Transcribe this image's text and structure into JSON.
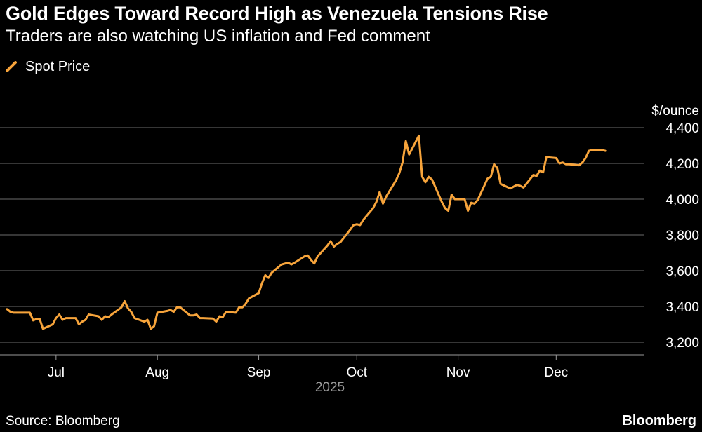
{
  "header": {
    "title": "Gold Edges Toward Record High as Venezuela Tensions Rise",
    "subtitle": "Traders are also watching US inflation and Fed comment"
  },
  "legend": {
    "label": "Spot Price",
    "color": "#F7A43B"
  },
  "footer": {
    "source": "Source: Bloomberg",
    "brand": "Bloomberg"
  },
  "chart_data": {
    "type": "line",
    "unit_label": "$/ounce",
    "year_label": "2025",
    "ylim": [
      3150,
      4420
    ],
    "y_ticks": [
      "4,400",
      "4,200",
      "4,000",
      "3,800",
      "3,600",
      "3,400",
      "3,200"
    ],
    "y_tick_values": [
      4400,
      4200,
      4000,
      3800,
      3600,
      3400,
      3200
    ],
    "x_ticks": [
      "Jul",
      "Aug",
      "Sep",
      "Oct",
      "Nov",
      "Dec"
    ],
    "x_tick_dates": [
      "2025-07-01",
      "2025-08-01",
      "2025-09-01",
      "2025-10-01",
      "2025-11-01",
      "2025-12-01"
    ],
    "xlim": [
      "2025-06-16",
      "2025-12-31"
    ],
    "grid": true,
    "legend_position": "top-left",
    "series": [
      {
        "name": "Spot Price",
        "color": "#F7A43B",
        "points": [
          [
            "2025-06-16",
            3385
          ],
          [
            "2025-06-17",
            3370
          ],
          [
            "2025-06-18",
            3365
          ],
          [
            "2025-06-19",
            3365
          ],
          [
            "2025-06-20",
            3365
          ],
          [
            "2025-06-23",
            3365
          ],
          [
            "2025-06-24",
            3322
          ],
          [
            "2025-06-25",
            3330
          ],
          [
            "2025-06-26",
            3330
          ],
          [
            "2025-06-27",
            3275
          ],
          [
            "2025-06-30",
            3300
          ],
          [
            "2025-07-01",
            3335
          ],
          [
            "2025-07-02",
            3355
          ],
          [
            "2025-07-03",
            3325
          ],
          [
            "2025-07-04",
            3335
          ],
          [
            "2025-07-07",
            3335
          ],
          [
            "2025-07-08",
            3300
          ],
          [
            "2025-07-09",
            3315
          ],
          [
            "2025-07-10",
            3325
          ],
          [
            "2025-07-11",
            3355
          ],
          [
            "2025-07-14",
            3345
          ],
          [
            "2025-07-15",
            3325
          ],
          [
            "2025-07-16",
            3345
          ],
          [
            "2025-07-17",
            3340
          ],
          [
            "2025-07-18",
            3355
          ],
          [
            "2025-07-21",
            3395
          ],
          [
            "2025-07-22",
            3430
          ],
          [
            "2025-07-23",
            3390
          ],
          [
            "2025-07-24",
            3370
          ],
          [
            "2025-07-25",
            3335
          ],
          [
            "2025-07-28",
            3315
          ],
          [
            "2025-07-29",
            3325
          ],
          [
            "2025-07-30",
            3275
          ],
          [
            "2025-07-31",
            3290
          ],
          [
            "2025-08-01",
            3365
          ],
          [
            "2025-08-04",
            3375
          ],
          [
            "2025-08-05",
            3380
          ],
          [
            "2025-08-06",
            3370
          ],
          [
            "2025-08-07",
            3395
          ],
          [
            "2025-08-08",
            3395
          ],
          [
            "2025-08-11",
            3350
          ],
          [
            "2025-08-12",
            3350
          ],
          [
            "2025-08-13",
            3355
          ],
          [
            "2025-08-14",
            3335
          ],
          [
            "2025-08-15",
            3335
          ],
          [
            "2025-08-18",
            3332
          ],
          [
            "2025-08-19",
            3315
          ],
          [
            "2025-08-20",
            3345
          ],
          [
            "2025-08-21",
            3340
          ],
          [
            "2025-08-22",
            3370
          ],
          [
            "2025-08-25",
            3365
          ],
          [
            "2025-08-26",
            3395
          ],
          [
            "2025-08-27",
            3395
          ],
          [
            "2025-08-28",
            3415
          ],
          [
            "2025-08-29",
            3445
          ],
          [
            "2025-09-01",
            3475
          ],
          [
            "2025-09-02",
            3530
          ],
          [
            "2025-09-03",
            3575
          ],
          [
            "2025-09-04",
            3560
          ],
          [
            "2025-09-05",
            3590
          ],
          [
            "2025-09-08",
            3635
          ],
          [
            "2025-09-09",
            3640
          ],
          [
            "2025-09-10",
            3645
          ],
          [
            "2025-09-11",
            3635
          ],
          [
            "2025-09-12",
            3645
          ],
          [
            "2025-09-15",
            3680
          ],
          [
            "2025-09-16",
            3685
          ],
          [
            "2025-09-17",
            3660
          ],
          [
            "2025-09-18",
            3640
          ],
          [
            "2025-09-19",
            3680
          ],
          [
            "2025-09-22",
            3740
          ],
          [
            "2025-09-23",
            3765
          ],
          [
            "2025-09-24",
            3735
          ],
          [
            "2025-09-25",
            3750
          ],
          [
            "2025-09-26",
            3760
          ],
          [
            "2025-09-29",
            3830
          ],
          [
            "2025-09-30",
            3855
          ],
          [
            "2025-10-01",
            3860
          ],
          [
            "2025-10-02",
            3855
          ],
          [
            "2025-10-03",
            3885
          ],
          [
            "2025-10-06",
            3950
          ],
          [
            "2025-10-07",
            3985
          ],
          [
            "2025-10-08",
            4040
          ],
          [
            "2025-10-09",
            3975
          ],
          [
            "2025-10-10",
            4015
          ],
          [
            "2025-10-13",
            4105
          ],
          [
            "2025-10-14",
            4145
          ],
          [
            "2025-10-15",
            4205
          ],
          [
            "2025-10-16",
            4325
          ],
          [
            "2025-10-17",
            4250
          ],
          [
            "2025-10-20",
            4355
          ],
          [
            "2025-10-21",
            4125
          ],
          [
            "2025-10-22",
            4095
          ],
          [
            "2025-10-23",
            4125
          ],
          [
            "2025-10-24",
            4110
          ],
          [
            "2025-10-27",
            3985
          ],
          [
            "2025-10-28",
            3950
          ],
          [
            "2025-10-29",
            3935
          ],
          [
            "2025-10-30",
            4025
          ],
          [
            "2025-10-31",
            4000
          ],
          [
            "2025-11-03",
            4000
          ],
          [
            "2025-11-04",
            3935
          ],
          [
            "2025-11-05",
            3980
          ],
          [
            "2025-11-06",
            3975
          ],
          [
            "2025-11-07",
            3995
          ],
          [
            "2025-11-10",
            4115
          ],
          [
            "2025-11-11",
            4125
          ],
          [
            "2025-11-12",
            4195
          ],
          [
            "2025-11-13",
            4175
          ],
          [
            "2025-11-14",
            4085
          ],
          [
            "2025-11-17",
            4060
          ],
          [
            "2025-11-18",
            4070
          ],
          [
            "2025-11-19",
            4080
          ],
          [
            "2025-11-20",
            4075
          ],
          [
            "2025-11-21",
            4065
          ],
          [
            "2025-11-24",
            4135
          ],
          [
            "2025-11-25",
            4130
          ],
          [
            "2025-11-26",
            4160
          ],
          [
            "2025-11-27",
            4150
          ],
          [
            "2025-11-28",
            4235
          ],
          [
            "2025-12-01",
            4230
          ],
          [
            "2025-12-02",
            4200
          ],
          [
            "2025-12-03",
            4205
          ],
          [
            "2025-12-04",
            4195
          ],
          [
            "2025-12-05",
            4195
          ],
          [
            "2025-12-08",
            4190
          ],
          [
            "2025-12-09",
            4205
          ],
          [
            "2025-12-10",
            4230
          ],
          [
            "2025-12-11",
            4270
          ],
          [
            "2025-12-12",
            4275
          ],
          [
            "2025-12-15",
            4275
          ],
          [
            "2025-12-16",
            4270
          ]
        ]
      }
    ]
  }
}
